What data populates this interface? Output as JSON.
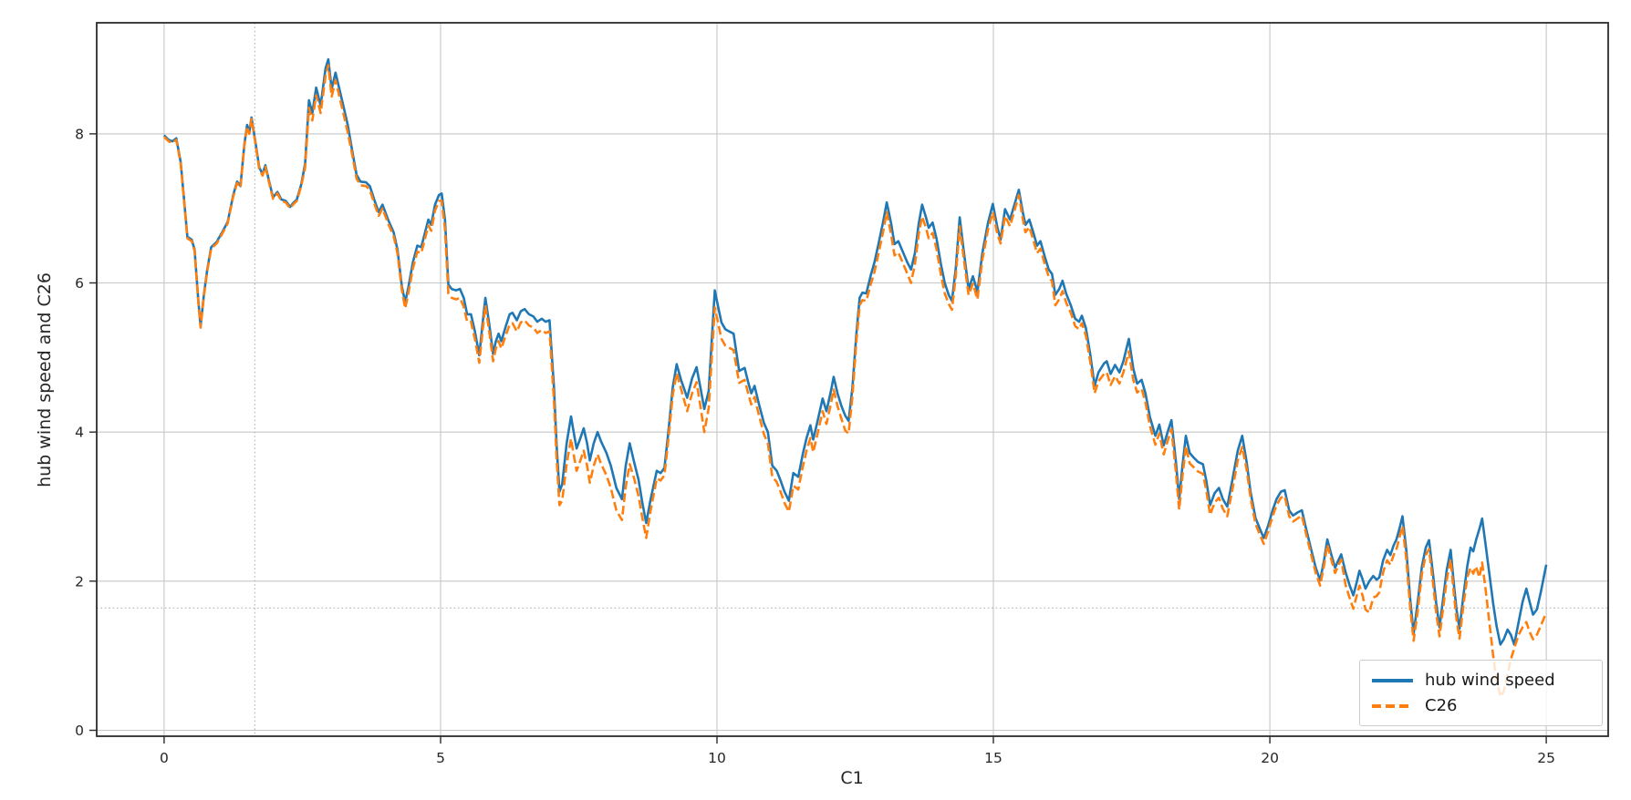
{
  "chart_data": {
    "type": "line",
    "title": "",
    "xlabel": "C1",
    "ylabel": "hub wind speed and C26",
    "xlim": [
      -1.22,
      26.12
    ],
    "ylim": [
      -0.08,
      9.49
    ],
    "xticks": [
      0,
      5,
      10,
      15,
      20,
      25
    ],
    "yticks": [
      0,
      2,
      4,
      6,
      8
    ],
    "grid": {
      "major": true,
      "crosshair_x": 1.64,
      "crosshair_y": 1.64,
      "crosshair_style": "dotted"
    },
    "legend_position": "lower right",
    "colors": {
      "hub_wind_speed": "#1f77b4",
      "c26": "#ff7f0e",
      "grid": "#c6c6c6",
      "crosshair": "#ababab",
      "spine": "#2b2b2b",
      "text": "#262626"
    },
    "x": [
      0.0,
      0.08,
      0.15,
      0.22,
      0.3,
      0.38,
      0.42,
      0.5,
      0.55,
      0.62,
      0.66,
      0.72,
      0.78,
      0.85,
      0.95,
      1.05,
      1.15,
      1.25,
      1.32,
      1.38,
      1.45,
      1.5,
      1.54,
      1.58,
      1.65,
      1.72,
      1.78,
      1.83,
      1.9,
      1.97,
      2.05,
      2.12,
      2.2,
      2.28,
      2.33,
      2.4,
      2.48,
      2.55,
      2.62,
      2.68,
      2.75,
      2.83,
      2.92,
      2.97,
      3.03,
      3.1,
      3.17,
      3.25,
      3.32,
      3.4,
      3.48,
      3.55,
      3.65,
      3.72,
      3.8,
      3.88,
      3.95,
      4.05,
      4.15,
      4.22,
      4.3,
      4.36,
      4.42,
      4.5,
      4.58,
      4.65,
      4.72,
      4.78,
      4.83,
      4.9,
      4.97,
      5.02,
      5.08,
      5.14,
      5.2,
      5.28,
      5.35,
      5.42,
      5.48,
      5.55,
      5.62,
      5.7,
      5.76,
      5.81,
      5.88,
      5.95,
      6.0,
      6.05,
      6.1,
      6.18,
      6.25,
      6.3,
      6.38,
      6.45,
      6.52,
      6.6,
      6.68,
      6.75,
      6.83,
      6.9,
      6.97,
      7.05,
      7.1,
      7.15,
      7.2,
      7.28,
      7.36,
      7.42,
      7.46,
      7.52,
      7.59,
      7.65,
      7.7,
      7.77,
      7.84,
      7.9,
      8.0,
      8.08,
      8.18,
      8.28,
      8.35,
      8.42,
      8.5,
      8.58,
      8.65,
      8.72,
      8.8,
      8.91,
      8.98,
      9.05,
      9.12,
      9.2,
      9.27,
      9.35,
      9.46,
      9.55,
      9.63,
      9.7,
      9.77,
      9.85,
      9.96,
      10.03,
      10.08,
      10.15,
      10.22,
      10.3,
      10.4,
      10.5,
      10.57,
      10.62,
      10.68,
      10.75,
      10.85,
      10.92,
      11.0,
      11.08,
      11.15,
      11.22,
      11.3,
      11.38,
      11.47,
      11.55,
      11.62,
      11.69,
      11.74,
      11.82,
      11.91,
      11.98,
      12.06,
      12.11,
      12.18,
      12.25,
      12.32,
      12.38,
      12.45,
      12.52,
      12.58,
      12.63,
      12.7,
      12.78,
      12.85,
      12.92,
      13.0,
      13.07,
      13.15,
      13.21,
      13.28,
      13.36,
      13.44,
      13.51,
      13.58,
      13.65,
      13.71,
      13.78,
      13.83,
      13.9,
      13.97,
      14.05,
      14.12,
      14.19,
      14.25,
      14.32,
      14.39,
      14.46,
      14.55,
      14.63,
      14.71,
      14.8,
      14.9,
      14.99,
      15.07,
      15.13,
      15.21,
      15.3,
      15.38,
      15.46,
      15.53,
      15.58,
      15.65,
      15.72,
      15.79,
      15.85,
      15.93,
      16.0,
      16.06,
      16.12,
      16.19,
      16.25,
      16.32,
      16.4,
      16.48,
      16.55,
      16.6,
      16.67,
      16.75,
      16.83,
      16.9,
      17.0,
      17.05,
      17.12,
      17.2,
      17.28,
      17.35,
      17.45,
      17.53,
      17.6,
      17.68,
      17.75,
      17.83,
      17.93,
      18.0,
      18.08,
      18.15,
      18.22,
      18.3,
      18.36,
      18.42,
      18.48,
      18.55,
      18.62,
      18.7,
      18.79,
      18.85,
      18.92,
      19.0,
      19.08,
      19.15,
      19.23,
      19.32,
      19.42,
      19.5,
      19.58,
      19.65,
      19.74,
      19.82,
      19.89,
      19.97,
      20.05,
      20.12,
      20.2,
      20.27,
      20.35,
      20.42,
      20.5,
      20.58,
      20.65,
      20.75,
      20.83,
      20.91,
      20.98,
      21.04,
      21.11,
      21.18,
      21.24,
      21.29,
      21.37,
      21.44,
      21.51,
      21.57,
      21.62,
      21.68,
      21.73,
      21.8,
      21.87,
      21.93,
      21.98,
      22.05,
      22.12,
      22.18,
      22.24,
      22.29,
      22.35,
      22.4,
      22.47,
      22.54,
      22.6,
      22.68,
      22.75,
      22.82,
      22.88,
      22.95,
      23.01,
      23.07,
      23.14,
      23.2,
      23.27,
      23.33,
      23.38,
      23.43,
      23.5,
      23.57,
      23.63,
      23.68,
      23.73,
      23.79,
      23.84,
      23.9,
      23.97,
      24.04,
      24.1,
      24.17,
      24.23,
      24.3,
      24.36,
      24.42,
      24.5,
      24.57,
      24.64,
      24.7,
      24.76,
      24.83,
      24.9,
      25.0
    ],
    "series": [
      {
        "name": "hub wind speed",
        "style": "solid",
        "color": "#1f77b4",
        "values": [
          7.98,
          7.92,
          7.9,
          7.94,
          7.62,
          6.95,
          6.62,
          6.58,
          6.45,
          5.75,
          5.42,
          5.85,
          6.18,
          6.48,
          6.55,
          6.68,
          6.82,
          7.18,
          7.36,
          7.3,
          7.85,
          8.12,
          8.02,
          8.22,
          7.9,
          7.55,
          7.46,
          7.58,
          7.36,
          7.15,
          7.22,
          7.12,
          7.1,
          7.02,
          7.07,
          7.12,
          7.32,
          7.6,
          8.45,
          8.28,
          8.62,
          8.38,
          8.88,
          9.0,
          8.6,
          8.82,
          8.6,
          8.35,
          8.12,
          7.78,
          7.45,
          7.36,
          7.35,
          7.3,
          7.12,
          6.95,
          7.05,
          6.85,
          6.68,
          6.45,
          5.95,
          5.74,
          5.95,
          6.28,
          6.5,
          6.48,
          6.68,
          6.85,
          6.78,
          7.05,
          7.18,
          7.2,
          6.85,
          5.98,
          5.92,
          5.9,
          5.92,
          5.8,
          5.58,
          5.58,
          5.35,
          5.03,
          5.45,
          5.8,
          5.45,
          5.05,
          5.22,
          5.32,
          5.22,
          5.42,
          5.58,
          5.6,
          5.5,
          5.62,
          5.65,
          5.58,
          5.55,
          5.48,
          5.52,
          5.48,
          5.5,
          4.62,
          3.8,
          3.2,
          3.3,
          3.85,
          4.21,
          3.95,
          3.78,
          3.9,
          4.05,
          3.85,
          3.62,
          3.85,
          4.0,
          3.88,
          3.72,
          3.55,
          3.25,
          3.1,
          3.55,
          3.85,
          3.6,
          3.36,
          3.05,
          2.78,
          3.1,
          3.48,
          3.45,
          3.52,
          4.0,
          4.6,
          4.91,
          4.7,
          4.46,
          4.72,
          4.87,
          4.6,
          4.31,
          4.55,
          5.9,
          5.65,
          5.47,
          5.38,
          5.35,
          5.32,
          4.82,
          4.86,
          4.65,
          4.52,
          4.62,
          4.4,
          4.12,
          4.0,
          3.55,
          3.48,
          3.35,
          3.2,
          3.08,
          3.45,
          3.4,
          3.7,
          3.92,
          4.09,
          3.9,
          4.15,
          4.45,
          4.28,
          4.55,
          4.74,
          4.52,
          4.35,
          4.22,
          4.15,
          4.6,
          5.3,
          5.8,
          5.87,
          5.86,
          6.1,
          6.28,
          6.52,
          6.8,
          7.08,
          6.8,
          6.52,
          6.56,
          6.42,
          6.28,
          6.18,
          6.4,
          6.8,
          7.05,
          6.88,
          6.74,
          6.81,
          6.6,
          6.25,
          6.0,
          5.84,
          5.76,
          6.2,
          6.88,
          6.45,
          5.92,
          6.09,
          5.88,
          6.4,
          6.8,
          7.06,
          6.75,
          6.58,
          6.99,
          6.85,
          7.05,
          7.25,
          6.95,
          6.78,
          6.85,
          6.68,
          6.5,
          6.56,
          6.35,
          6.18,
          6.12,
          5.84,
          5.92,
          6.03,
          5.85,
          5.7,
          5.52,
          5.48,
          5.56,
          5.4,
          5.05,
          4.62,
          4.8,
          4.92,
          4.95,
          4.78,
          4.9,
          4.8,
          4.95,
          5.25,
          4.85,
          4.65,
          4.7,
          4.52,
          4.2,
          3.95,
          4.1,
          3.82,
          4.0,
          4.16,
          3.6,
          3.1,
          3.55,
          3.95,
          3.72,
          3.66,
          3.6,
          3.57,
          3.35,
          3.02,
          3.18,
          3.25,
          3.1,
          3.0,
          3.35,
          3.75,
          3.95,
          3.6,
          3.2,
          2.85,
          2.7,
          2.58,
          2.75,
          2.95,
          3.1,
          3.2,
          3.22,
          2.95,
          2.88,
          2.92,
          2.95,
          2.72,
          2.42,
          2.18,
          2.01,
          2.28,
          2.56,
          2.36,
          2.18,
          2.28,
          2.36,
          2.12,
          1.95,
          1.81,
          1.98,
          2.14,
          2.02,
          1.9,
          2.0,
          2.07,
          2.02,
          2.05,
          2.28,
          2.42,
          2.35,
          2.48,
          2.56,
          2.72,
          2.87,
          2.4,
          1.75,
          1.3,
          1.75,
          2.2,
          2.45,
          2.55,
          2.1,
          1.7,
          1.38,
          1.8,
          2.15,
          2.42,
          1.95,
          1.6,
          1.36,
          1.8,
          2.2,
          2.45,
          2.4,
          2.55,
          2.7,
          2.84,
          2.5,
          2.1,
          1.7,
          1.4,
          1.15,
          1.22,
          1.35,
          1.28,
          1.15,
          1.45,
          1.72,
          1.9,
          1.72,
          1.55,
          1.62,
          1.85,
          2.22
        ]
      },
      {
        "name": "C26",
        "style": "dashed",
        "color": "#ff7f0e",
        "values": [
          7.96,
          7.9,
          7.88,
          7.92,
          7.6,
          6.93,
          6.6,
          6.56,
          6.43,
          5.73,
          5.4,
          5.83,
          6.16,
          6.46,
          6.53,
          6.66,
          6.8,
          7.16,
          7.34,
          7.28,
          7.83,
          8.1,
          8.0,
          8.2,
          7.88,
          7.53,
          7.44,
          7.56,
          7.34,
          7.13,
          7.2,
          7.1,
          7.08,
          7.0,
          7.05,
          7.1,
          7.3,
          7.55,
          8.35,
          8.18,
          8.52,
          8.28,
          8.78,
          8.92,
          8.5,
          8.72,
          8.5,
          8.25,
          8.02,
          7.73,
          7.4,
          7.31,
          7.3,
          7.25,
          7.07,
          6.9,
          7.0,
          6.8,
          6.63,
          6.4,
          5.9,
          5.66,
          5.87,
          6.2,
          6.42,
          6.4,
          6.6,
          6.77,
          6.7,
          6.97,
          7.1,
          7.1,
          6.73,
          5.86,
          5.8,
          5.78,
          5.8,
          5.68,
          5.48,
          5.48,
          5.25,
          4.93,
          5.35,
          5.7,
          5.35,
          4.95,
          5.12,
          5.22,
          5.12,
          5.3,
          5.44,
          5.46,
          5.35,
          5.47,
          5.5,
          5.43,
          5.4,
          5.33,
          5.37,
          5.33,
          5.35,
          4.44,
          3.62,
          3.02,
          3.08,
          3.57,
          3.91,
          3.65,
          3.48,
          3.6,
          3.75,
          3.55,
          3.32,
          3.55,
          3.7,
          3.58,
          3.42,
          3.25,
          2.95,
          2.82,
          3.27,
          3.57,
          3.38,
          3.14,
          2.85,
          2.58,
          2.95,
          3.38,
          3.35,
          3.42,
          3.9,
          4.5,
          4.79,
          4.58,
          4.28,
          4.52,
          4.67,
          4.35,
          4.0,
          4.32,
          5.67,
          5.43,
          5.25,
          5.16,
          5.13,
          5.1,
          4.66,
          4.7,
          4.5,
          4.37,
          4.47,
          4.25,
          3.97,
          3.85,
          3.4,
          3.33,
          3.2,
          3.05,
          2.93,
          3.28,
          3.23,
          3.53,
          3.75,
          3.92,
          3.73,
          3.98,
          4.28,
          4.11,
          4.38,
          4.57,
          4.35,
          4.18,
          4.02,
          3.98,
          4.48,
          5.2,
          5.7,
          5.77,
          5.76,
          5.98,
          6.15,
          6.39,
          6.67,
          6.95,
          6.65,
          6.37,
          6.41,
          6.27,
          6.13,
          6.0,
          6.25,
          6.66,
          6.89,
          6.74,
          6.6,
          6.67,
          6.46,
          6.11,
          5.86,
          5.72,
          5.64,
          6.1,
          6.76,
          6.35,
          5.84,
          5.99,
          5.78,
          6.31,
          6.71,
          6.95,
          6.66,
          6.53,
          6.9,
          6.76,
          6.97,
          7.18,
          6.86,
          6.68,
          6.75,
          6.58,
          6.4,
          6.46,
          6.25,
          6.08,
          6.02,
          5.7,
          5.78,
          5.89,
          5.73,
          5.6,
          5.42,
          5.38,
          5.46,
          5.3,
          4.95,
          4.52,
          4.68,
          4.78,
          4.8,
          4.63,
          4.75,
          4.65,
          4.8,
          5.08,
          4.7,
          4.53,
          4.58,
          4.4,
          4.08,
          3.83,
          3.98,
          3.7,
          3.88,
          4.04,
          3.46,
          2.96,
          3.41,
          3.81,
          3.58,
          3.53,
          3.47,
          3.44,
          3.22,
          2.89,
          3.05,
          3.12,
          2.97,
          2.87,
          3.22,
          3.62,
          3.8,
          3.5,
          3.12,
          2.77,
          2.62,
          2.5,
          2.67,
          2.87,
          3.02,
          3.12,
          3.14,
          2.87,
          2.8,
          2.84,
          2.88,
          2.65,
          2.35,
          2.11,
          1.94,
          2.21,
          2.49,
          2.29,
          2.11,
          2.21,
          2.29,
          1.95,
          1.78,
          1.63,
          1.8,
          1.94,
          1.8,
          1.62,
          1.58,
          1.78,
          1.8,
          1.85,
          2.12,
          2.28,
          2.22,
          2.35,
          2.43,
          2.6,
          2.74,
          2.28,
          1.63,
          1.2,
          1.63,
          2.1,
          2.35,
          2.43,
          1.98,
          1.57,
          1.26,
          1.67,
          2.02,
          2.29,
          1.82,
          1.47,
          1.23,
          1.67,
          2.05,
          2.18,
          2.1,
          2.2,
          2.05,
          2.25,
          1.9,
          1.45,
          1.0,
          0.68,
          0.45,
          0.52,
          0.75,
          0.95,
          1.1,
          1.28,
          1.38,
          1.45,
          1.32,
          1.22,
          1.28,
          1.4,
          1.58
        ]
      }
    ]
  }
}
